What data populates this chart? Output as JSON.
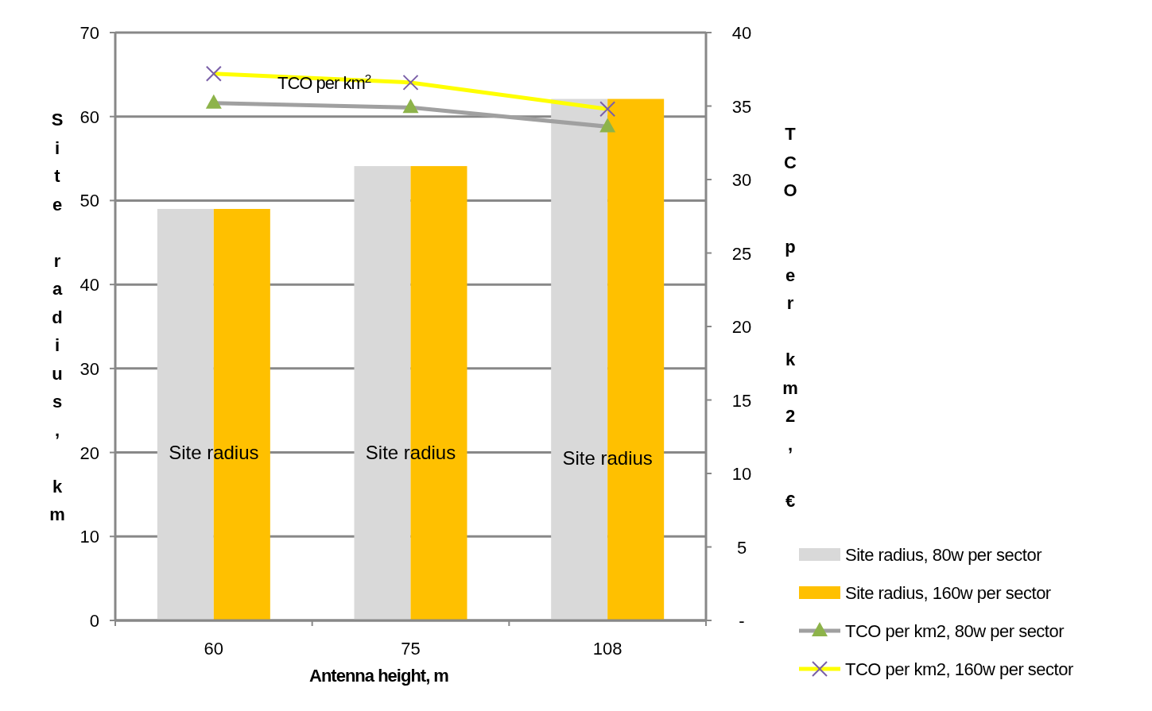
{
  "chart_data": {
    "type": "bar",
    "xlabel": "Antenna height, m",
    "ylabel": "Site radius, km",
    "y2label": "TCO per km2, €",
    "categories": [
      "60",
      "75",
      "108"
    ],
    "series": [
      {
        "name": "Site radius, 80w per sector",
        "color": "#d9d9d9",
        "values": [
          49,
          54.1,
          62.1
        ]
      },
      {
        "name": "Site radius, 160w per sector",
        "color": "#ffc000",
        "values": [
          49,
          54.1,
          62.1
        ]
      },
      {
        "name": "TCO per km2, 80w per sector",
        "type": "line",
        "axis": "y2",
        "color": "#a0a0a0",
        "marker": "triangle",
        "colors": [
          "#8db34a",
          "#8db34a",
          "#8db34a"
        ],
        "values": [
          35.2,
          34.9,
          33.6
        ]
      },
      {
        "name": "TCO per km2, 160w per sector",
        "type": "line",
        "axis": "y2",
        "color": "#ffff00",
        "marker": "cross",
        "colors": [
          "#7a5fa8",
          "#7a5fa8",
          "#7a5fa8"
        ],
        "values": [
          37.2,
          36.6,
          34.8
        ]
      }
    ],
    "ylim": [
      0,
      70
    ],
    "yticks": [
      0,
      10,
      20,
      30,
      40,
      50,
      60,
      70
    ],
    "y2lim": [
      0,
      40
    ],
    "y2ticks": [
      {
        "value": 0,
        "label": "-"
      },
      5,
      10,
      15,
      20,
      25,
      30,
      35,
      40
    ],
    "grid": "y",
    "legend": "right",
    "annotations": [
      {
        "text": "Site radius",
        "x": "60",
        "y": 20
      },
      {
        "text": "Site radius",
        "x": "75",
        "y": 20
      },
      {
        "text": "Site radius",
        "x": "108",
        "y": 19.3
      },
      "TCO per km$^{2}$"
    ]
  }
}
